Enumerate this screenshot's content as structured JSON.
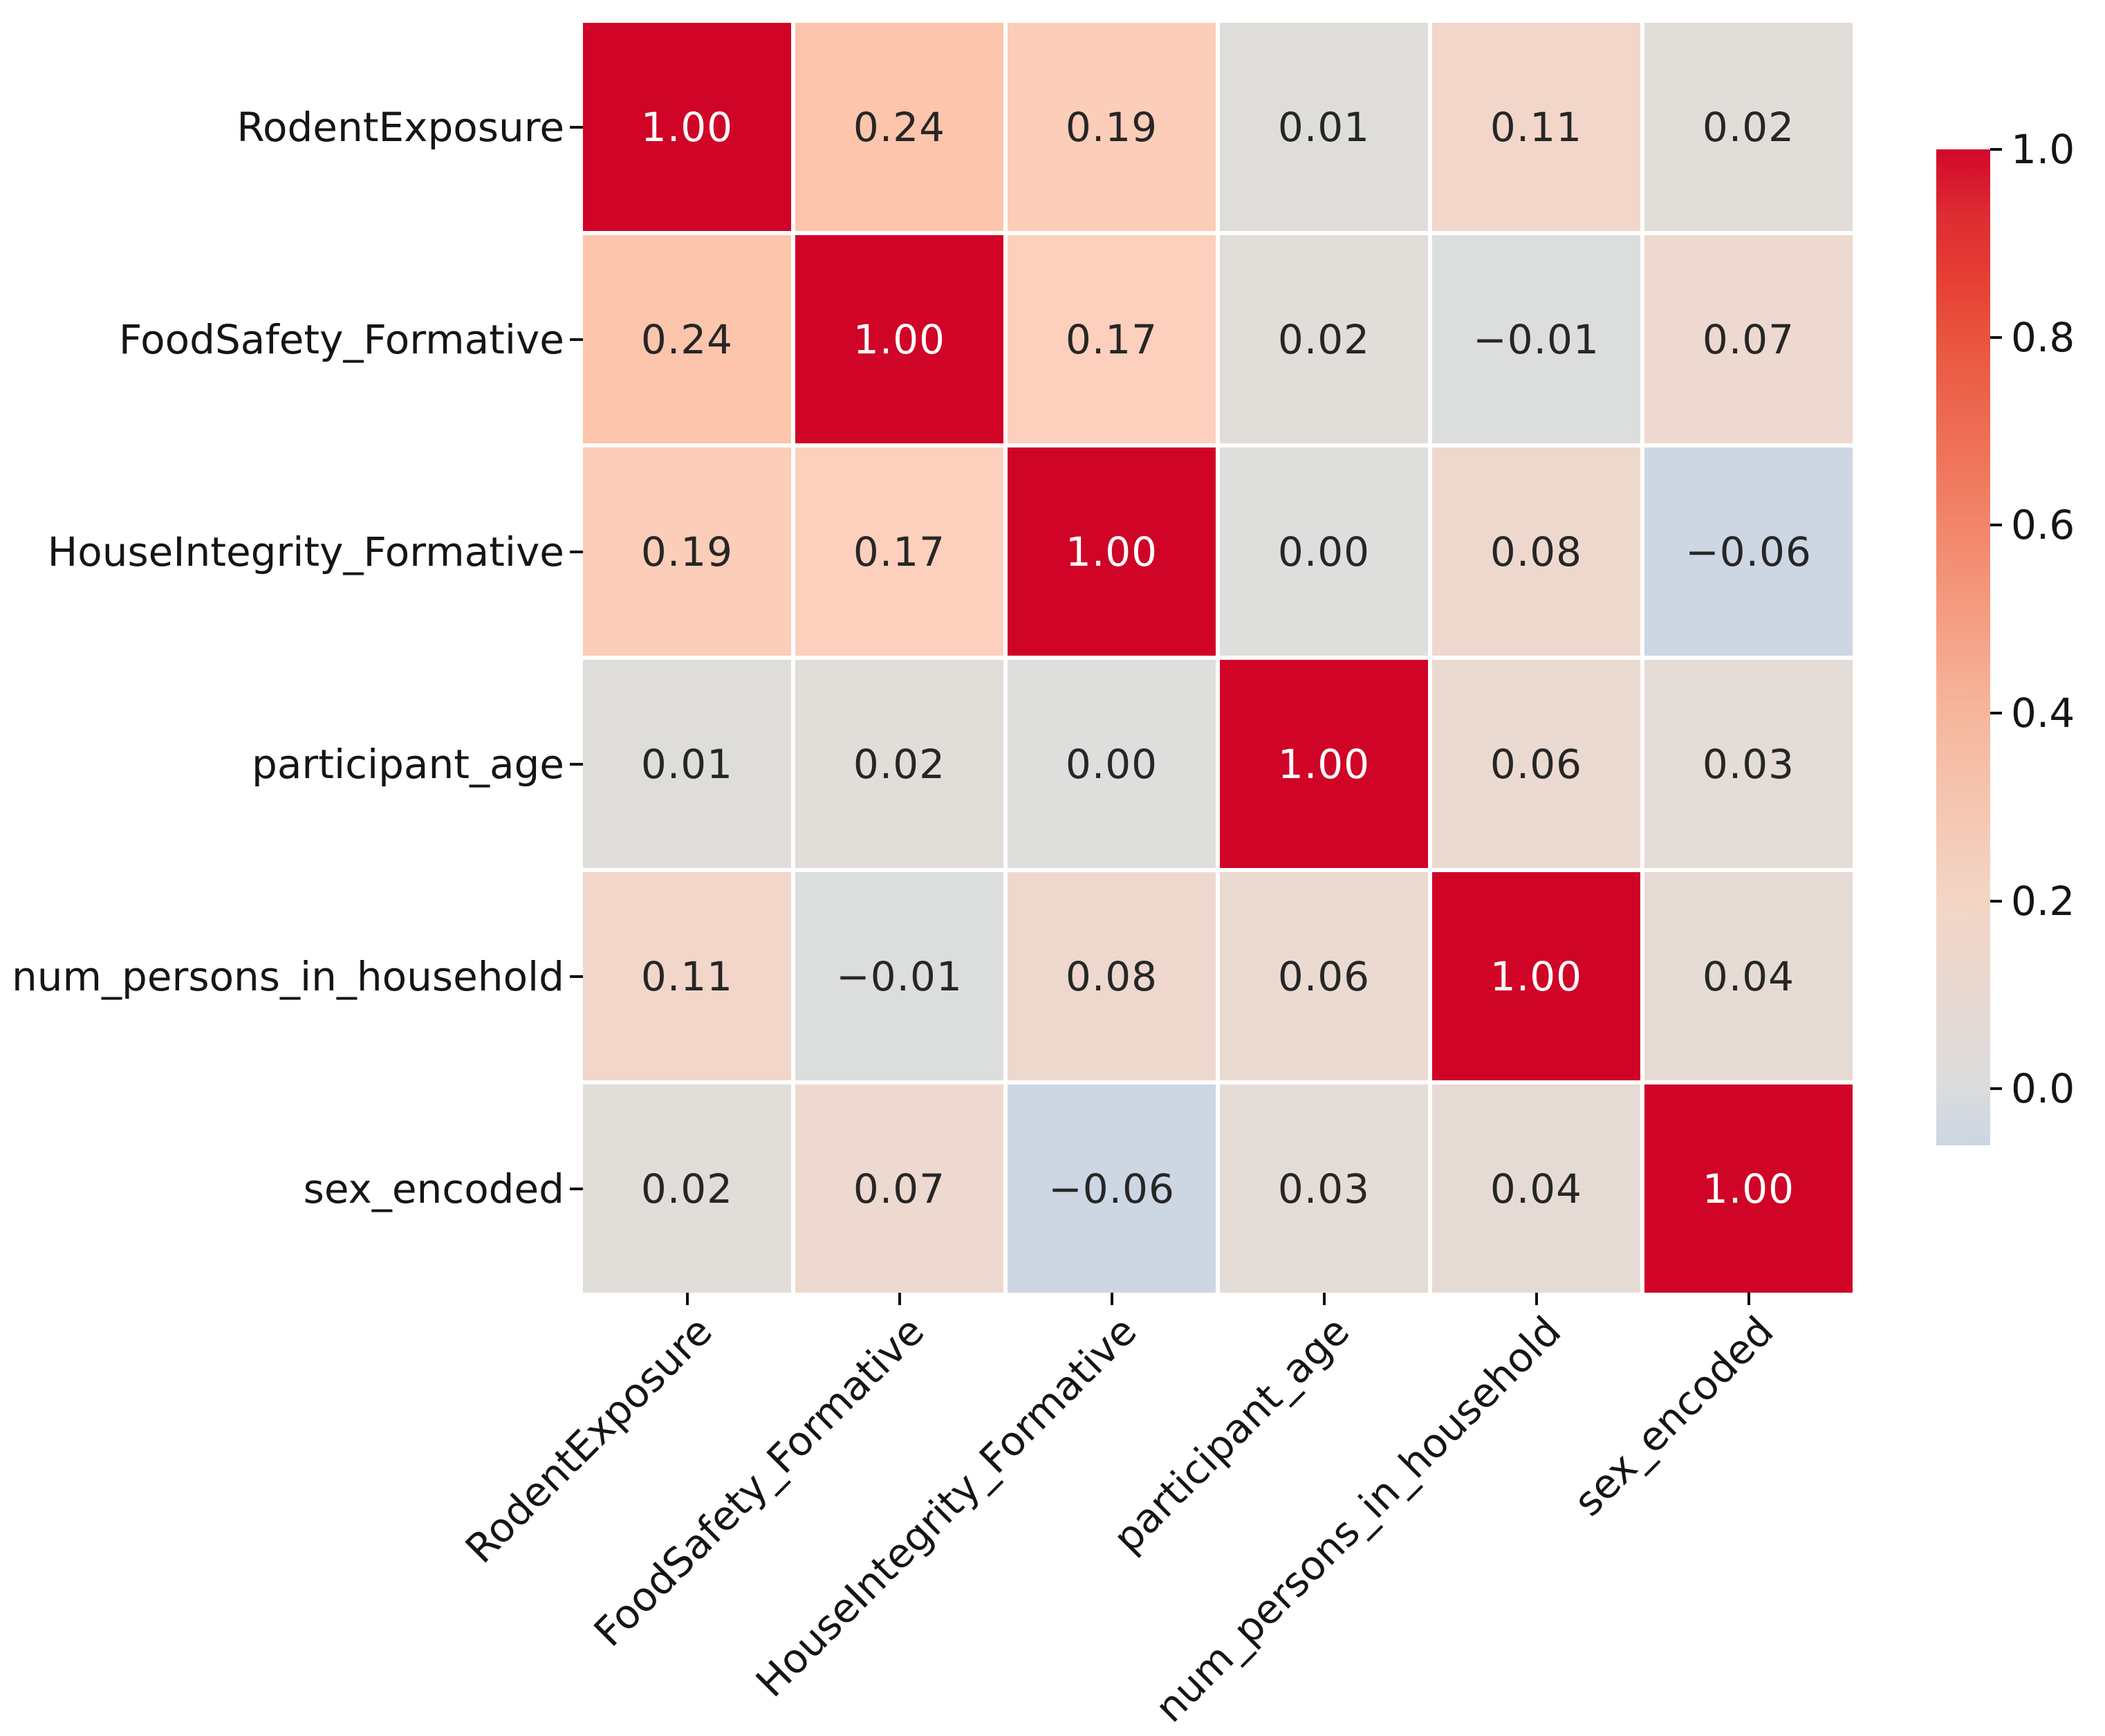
{
  "chart_data": {
    "type": "heatmap",
    "title": "",
    "xlabel": "",
    "ylabel": "",
    "categories": [
      "RodentExposure",
      "FoodSafety_Formative",
      "HouseIntegrity_Formative",
      "participant_age",
      "num_persons_in_household",
      "sex_encoded"
    ],
    "matrix": [
      [
        1.0,
        0.24,
        0.19,
        0.01,
        0.11,
        0.02
      ],
      [
        0.24,
        1.0,
        0.17,
        0.02,
        -0.01,
        0.07
      ],
      [
        0.19,
        0.17,
        1.0,
        0.0,
        0.08,
        -0.06
      ],
      [
        0.01,
        0.02,
        0.0,
        1.0,
        0.06,
        0.03
      ],
      [
        0.11,
        -0.01,
        0.08,
        0.06,
        1.0,
        0.04
      ],
      [
        0.02,
        0.07,
        -0.06,
        0.03,
        0.04,
        1.0
      ]
    ],
    "annotation_decimals": 2,
    "x_tick_rotation_deg": 45,
    "grid_line_color": "#ffffff",
    "background": "#ffffff",
    "axis_text_color": "#151515",
    "annotation_text_dark": "#262626",
    "annotation_text_light": "#ffffff",
    "tick_mark_color": "#111111",
    "colorbar": {
      "position": "right",
      "vmin": -0.06,
      "vmax": 1.0,
      "tick_values": [
        1.0,
        0.8,
        0.6,
        0.4,
        0.2,
        0.0
      ],
      "tick_labels": [
        "1.0",
        "0.8",
        "0.6",
        "0.4",
        "0.2",
        "0.0"
      ],
      "gradient": [
        {
          "stop": 0.0,
          "color": "#d2082b"
        },
        {
          "stop": 0.065,
          "color": "#dd2c32"
        },
        {
          "stop": 0.128,
          "color": "#e63e33"
        },
        {
          "stop": 0.188,
          "color": "#e9543e"
        },
        {
          "stop": 0.376,
          "color": "#f28569"
        },
        {
          "stop": 0.565,
          "color": "#f6b69c"
        },
        {
          "stop": 0.753,
          "color": "#f4d5c5"
        },
        {
          "stop": 0.941,
          "color": "#dbdcdd"
        },
        {
          "stop": 1.0,
          "color": "#ccd6e3"
        }
      ]
    },
    "cell_colors": {
      "1.00": "#d00427",
      "0.24": "#fcc5ac",
      "0.19": "#fccdb8",
      "0.17": "#fcd0bc",
      "0.11": "#f2d6c9",
      "0.08": "#eed8cd",
      "0.07": "#edd9cf",
      "0.06": "#ebdad1",
      "0.04": "#e6dbd4",
      "0.03": "#e4dcd6",
      "0.02": "#e1ddd8",
      "0.01": "#dfddda",
      "0.00": "#dededc",
      "-0.01": "#dcdede",
      "-0.06": "#cdd6e3"
    }
  }
}
